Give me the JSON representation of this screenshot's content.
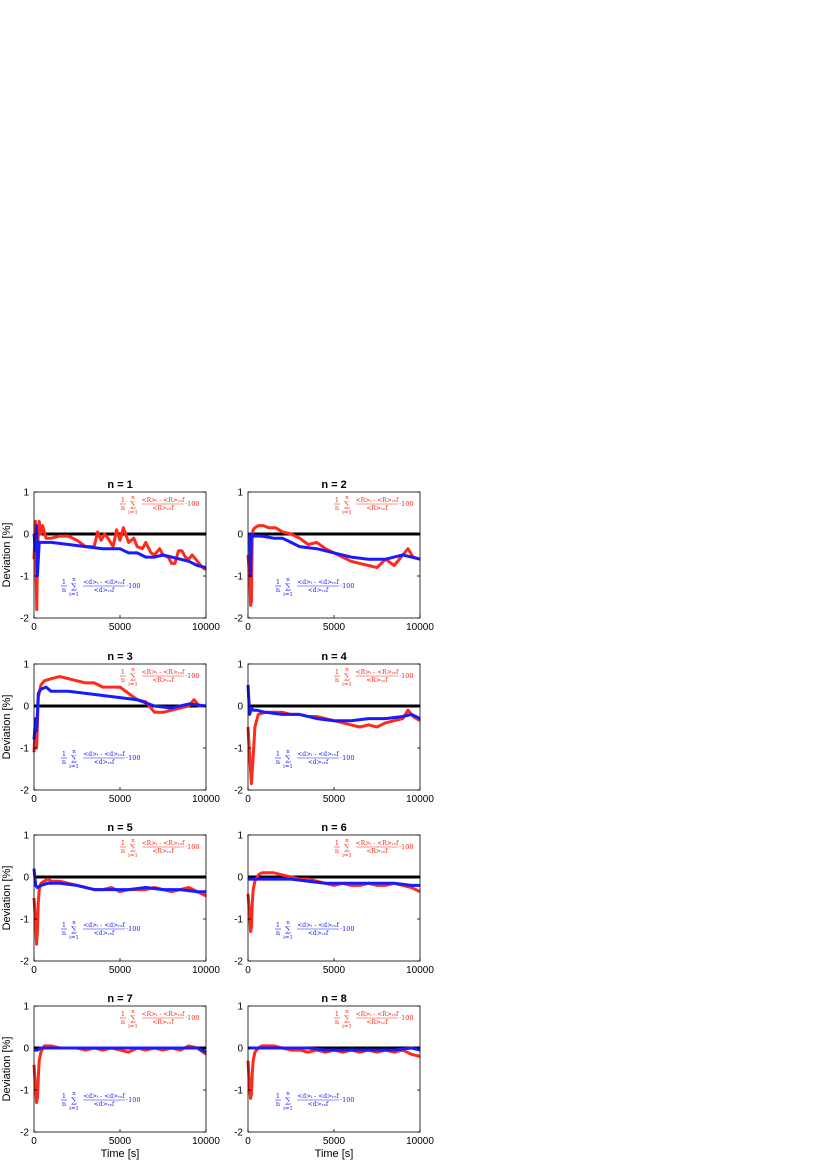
{
  "figure": {
    "xlabel": "Time [s]",
    "ylabel": "Deviation [%]",
    "colors": {
      "R": "#ff2a1a",
      "d": "#1a1aff",
      "zero": "#000000"
    },
    "formulas": {
      "R": {
        "prefix_num": "1",
        "prefix_den": "n",
        "sum_top": "n",
        "sum_bottom": "i=1",
        "num": "<R>ᵢ - <R>ᵣₑf",
        "den": "<R>ᵣₑf",
        "suffix": "·100"
      },
      "d": {
        "prefix_num": "1",
        "prefix_den": "n",
        "sum_top": "n",
        "sum_bottom": "i=1",
        "num": "<d>ᵢ - <d>ᵣₑf",
        "den": "<d>ᵣₑf",
        "suffix": "·100"
      }
    }
  },
  "chart_data": [
    {
      "type": "line",
      "title": "n = 1",
      "xlim": [
        0,
        10000
      ],
      "ylim": [
        -2,
        1
      ],
      "xticks": [
        "0",
        "5000",
        "10000"
      ],
      "yticks": [
        "1",
        "0",
        "-1",
        "-2"
      ],
      "series": [
        {
          "key": "R",
          "x": [
            0,
            80,
            120,
            160,
            200,
            260,
            300,
            400,
            500,
            700,
            1000,
            1500,
            2000,
            2500,
            3000,
            3500,
            3700,
            3900,
            4100,
            4300,
            4600,
            4800,
            5000,
            5200,
            5500,
            5800,
            6000,
            6300,
            6500,
            6800,
            7000,
            7300,
            7500,
            7800,
            8000,
            8200,
            8400,
            8600,
            8800,
            9000,
            9200,
            9400,
            9600,
            9800,
            10000
          ],
          "y": [
            -0.6,
            0.3,
            -1.0,
            -1.8,
            -0.5,
            0.1,
            0.3,
            0.0,
            0.2,
            -0.1,
            -0.1,
            -0.05,
            -0.05,
            -0.15,
            -0.3,
            -0.3,
            0.05,
            -0.15,
            0.0,
            -0.1,
            -0.3,
            0.1,
            -0.15,
            0.15,
            -0.2,
            -0.1,
            -0.3,
            -0.35,
            -0.2,
            -0.45,
            -0.5,
            -0.35,
            -0.5,
            -0.55,
            -0.7,
            -0.7,
            -0.4,
            -0.4,
            -0.55,
            -0.6,
            -0.5,
            -0.6,
            -0.7,
            -0.8,
            -0.85
          ]
        },
        {
          "key": "d",
          "x": [
            0,
            100,
            150,
            200,
            300,
            400,
            600,
            1000,
            2000,
            3000,
            4000,
            5000,
            5500,
            6000,
            6500,
            7000,
            7500,
            8000,
            8500,
            9000,
            9500,
            10000
          ],
          "y": [
            0.0,
            -0.4,
            0.2,
            -1.0,
            -0.2,
            -0.2,
            -0.2,
            -0.2,
            -0.25,
            -0.3,
            -0.35,
            -0.35,
            -0.45,
            -0.45,
            -0.55,
            -0.55,
            -0.5,
            -0.55,
            -0.6,
            -0.65,
            -0.75,
            -0.8
          ]
        }
      ]
    },
    {
      "type": "line",
      "title": "n = 2",
      "xlim": [
        0,
        10000
      ],
      "ylim": [
        -2,
        1
      ],
      "xticks": [
        "0",
        "5000",
        "10000"
      ],
      "yticks": [
        "1",
        "0",
        "-1",
        "-2"
      ],
      "series": [
        {
          "key": "R",
          "x": [
            0,
            100,
            150,
            200,
            250,
            300,
            400,
            600,
            900,
            1200,
            1600,
            2000,
            2500,
            3000,
            3500,
            4000,
            4500,
            5000,
            5500,
            6000,
            6500,
            7000,
            7500,
            8000,
            8500,
            9000,
            9300,
            9600,
            10000
          ],
          "y": [
            -0.5,
            -1.0,
            -1.7,
            -1.6,
            0.0,
            0.1,
            0.15,
            0.2,
            0.2,
            0.15,
            0.15,
            0.05,
            0.0,
            -0.1,
            -0.25,
            -0.2,
            -0.35,
            -0.45,
            -0.55,
            -0.65,
            -0.7,
            -0.75,
            -0.8,
            -0.6,
            -0.75,
            -0.5,
            -0.35,
            -0.55,
            -0.6
          ]
        },
        {
          "key": "d",
          "x": [
            0,
            100,
            150,
            200,
            300,
            500,
            800,
            1500,
            2000,
            2500,
            3000,
            4000,
            5000,
            6000,
            7000,
            8000,
            8500,
            9000,
            9500,
            10000
          ],
          "y": [
            0.0,
            0.0,
            -1.0,
            0.0,
            -0.05,
            -0.05,
            -0.05,
            -0.1,
            -0.1,
            -0.2,
            -0.3,
            -0.35,
            -0.45,
            -0.55,
            -0.6,
            -0.6,
            -0.55,
            -0.5,
            -0.55,
            -0.6
          ]
        }
      ]
    },
    {
      "type": "line",
      "title": "n = 3",
      "xlim": [
        0,
        10000
      ],
      "ylim": [
        -2,
        1
      ],
      "xticks": [
        "0",
        "5000",
        "10000"
      ],
      "yticks": [
        "1",
        "0",
        "-1",
        "-2"
      ],
      "series": [
        {
          "key": "R",
          "x": [
            0,
            100,
            150,
            250,
            400,
            600,
            1000,
            1500,
            2000,
            2500,
            3000,
            3500,
            4000,
            4500,
            5000,
            5500,
            6000,
            6500,
            7000,
            7500,
            8000,
            8500,
            9000,
            9300,
            9600,
            10000
          ],
          "y": [
            -1.1,
            -0.3,
            -1.0,
            0.2,
            0.5,
            0.6,
            0.65,
            0.7,
            0.65,
            0.6,
            0.55,
            0.55,
            0.45,
            0.45,
            0.45,
            0.3,
            0.15,
            0.1,
            -0.15,
            -0.15,
            -0.1,
            -0.05,
            0.0,
            0.15,
            0.0,
            0.0
          ]
        },
        {
          "key": "d",
          "x": [
            0,
            100,
            150,
            250,
            400,
            700,
            1000,
            2000,
            3000,
            4000,
            5000,
            6000,
            7000,
            8000,
            9000,
            10000
          ],
          "y": [
            -0.8,
            -0.3,
            -0.6,
            0.3,
            0.4,
            0.45,
            0.35,
            0.35,
            0.3,
            0.25,
            0.2,
            0.15,
            0.0,
            -0.05,
            0.05,
            0.0
          ]
        }
      ]
    },
    {
      "type": "line",
      "title": "n = 4",
      "xlim": [
        0,
        10000
      ],
      "ylim": [
        -2,
        1
      ],
      "xticks": [
        "0",
        "5000",
        "10000"
      ],
      "yticks": [
        "1",
        "0",
        "-1",
        "-2"
      ],
      "series": [
        {
          "key": "R",
          "x": [
            0,
            100,
            200,
            300,
            400,
            600,
            1000,
            1500,
            2000,
            2500,
            3000,
            3500,
            4000,
            4500,
            5000,
            5500,
            6000,
            6500,
            7000,
            7500,
            8000,
            8500,
            9000,
            9300,
            9600,
            10000
          ],
          "y": [
            -0.5,
            -1.2,
            -1.85,
            -1.2,
            -0.5,
            -0.2,
            -0.15,
            -0.15,
            -0.15,
            -0.2,
            -0.2,
            -0.25,
            -0.25,
            -0.3,
            -0.35,
            -0.4,
            -0.45,
            -0.5,
            -0.45,
            -0.5,
            -0.4,
            -0.35,
            -0.3,
            -0.1,
            -0.25,
            -0.35
          ]
        },
        {
          "key": "d",
          "x": [
            0,
            100,
            200,
            300,
            500,
            1000,
            2000,
            3000,
            4000,
            5000,
            6000,
            7000,
            8000,
            9000,
            9500,
            10000
          ],
          "y": [
            0.5,
            -0.2,
            -0.05,
            -0.1,
            -0.1,
            -0.15,
            -0.2,
            -0.2,
            -0.3,
            -0.35,
            -0.35,
            -0.3,
            -0.3,
            -0.25,
            -0.2,
            -0.3
          ]
        }
      ]
    },
    {
      "type": "line",
      "title": "n = 5",
      "xlim": [
        0,
        10000
      ],
      "ylim": [
        -2,
        1
      ],
      "xticks": [
        "0",
        "5000",
        "10000"
      ],
      "yticks": [
        "1",
        "0",
        "-1",
        "-2"
      ],
      "series": [
        {
          "key": "R",
          "x": [
            0,
            100,
            150,
            200,
            250,
            300,
            400,
            600,
            800,
            1000,
            1500,
            2000,
            2500,
            3000,
            3500,
            4000,
            4500,
            5000,
            5500,
            6000,
            6500,
            7000,
            7500,
            8000,
            8500,
            9000,
            9500,
            10000
          ],
          "y": [
            -0.5,
            -1.1,
            -1.6,
            -1.3,
            -0.6,
            -0.3,
            -0.15,
            -0.1,
            -0.05,
            -0.1,
            -0.1,
            -0.15,
            -0.2,
            -0.25,
            -0.3,
            -0.3,
            -0.25,
            -0.35,
            -0.3,
            -0.3,
            -0.3,
            -0.25,
            -0.3,
            -0.35,
            -0.3,
            -0.25,
            -0.35,
            -0.45
          ]
        },
        {
          "key": "d",
          "x": [
            0,
            100,
            200,
            400,
            800,
            1500,
            2500,
            3500,
            4500,
            5500,
            6500,
            7500,
            8500,
            9500,
            10000
          ],
          "y": [
            0.2,
            -0.2,
            -0.25,
            -0.2,
            -0.15,
            -0.15,
            -0.2,
            -0.3,
            -0.3,
            -0.3,
            -0.25,
            -0.3,
            -0.3,
            -0.35,
            -0.35
          ]
        }
      ]
    },
    {
      "type": "line",
      "title": "n = 6",
      "xlim": [
        0,
        10000
      ],
      "ylim": [
        -2,
        1
      ],
      "xticks": [
        "0",
        "5000",
        "10000"
      ],
      "yticks": [
        "1",
        "0",
        "-1",
        "-2"
      ],
      "series": [
        {
          "key": "R",
          "x": [
            0,
            100,
            150,
            200,
            250,
            300,
            400,
            600,
            800,
            1000,
            1500,
            2000,
            2500,
            3000,
            3500,
            4000,
            4500,
            5000,
            5500,
            6000,
            6500,
            7000,
            7500,
            8000,
            8500,
            9000,
            9500,
            10000
          ],
          "y": [
            -0.4,
            -0.9,
            -1.3,
            -1.2,
            -0.6,
            -0.3,
            -0.1,
            0.05,
            0.1,
            0.1,
            0.1,
            0.05,
            0.0,
            -0.05,
            -0.05,
            -0.1,
            -0.15,
            -0.2,
            -0.15,
            -0.2,
            -0.2,
            -0.15,
            -0.2,
            -0.2,
            -0.15,
            -0.2,
            -0.25,
            -0.35
          ]
        },
        {
          "key": "d",
          "x": [
            0,
            200,
            400,
            800,
            1500,
            2500,
            3500,
            4500,
            5500,
            6500,
            7500,
            8500,
            9500,
            10000
          ],
          "y": [
            -0.05,
            -0.05,
            -0.05,
            -0.05,
            -0.05,
            -0.05,
            -0.1,
            -0.15,
            -0.15,
            -0.15,
            -0.15,
            -0.15,
            -0.2,
            -0.2
          ]
        }
      ]
    },
    {
      "type": "line",
      "title": "n = 7",
      "xlim": [
        0,
        10000
      ],
      "ylim": [
        -2,
        1
      ],
      "xticks": [
        "0",
        "5000",
        "10000"
      ],
      "yticks": [
        "1",
        "0",
        "-1",
        "-2"
      ],
      "series": [
        {
          "key": "R",
          "x": [
            0,
            100,
            150,
            200,
            250,
            300,
            400,
            600,
            800,
            1000,
            1500,
            2000,
            2500,
            3000,
            3500,
            4000,
            4500,
            5000,
            5500,
            6000,
            6500,
            7000,
            7500,
            8000,
            8500,
            9000,
            9500,
            10000
          ],
          "y": [
            -0.4,
            -1.0,
            -1.3,
            -1.2,
            -0.7,
            -0.3,
            -0.1,
            0.05,
            0.05,
            0.05,
            0.0,
            0.0,
            0.0,
            -0.05,
            0.0,
            -0.05,
            0.0,
            -0.05,
            -0.1,
            0.0,
            -0.05,
            0.0,
            -0.05,
            0.0,
            -0.05,
            0.05,
            0.0,
            -0.15
          ]
        },
        {
          "key": "d",
          "x": [
            0,
            200,
            400,
            800,
            1500,
            2500,
            3500,
            4500,
            5500,
            6500,
            7500,
            8500,
            9500,
            10000
          ],
          "y": [
            -0.05,
            -0.05,
            0.0,
            0.0,
            0.0,
            0.0,
            0.0,
            0.0,
            0.0,
            0.0,
            0.0,
            0.0,
            0.0,
            -0.1
          ]
        }
      ]
    },
    {
      "type": "line",
      "title": "n = 8",
      "xlim": [
        0,
        10000
      ],
      "ylim": [
        -2,
        1
      ],
      "xticks": [
        "0",
        "5000",
        "10000"
      ],
      "yticks": [
        "1",
        "0",
        "-1",
        "-2"
      ],
      "series": [
        {
          "key": "R",
          "x": [
            0,
            100,
            150,
            200,
            250,
            300,
            400,
            600,
            800,
            1000,
            1500,
            2000,
            2500,
            3000,
            3500,
            4000,
            4500,
            5000,
            5500,
            6000,
            6500,
            7000,
            7500,
            8000,
            8500,
            9000,
            9500,
            10000
          ],
          "y": [
            -0.3,
            -1.0,
            -1.2,
            -1.1,
            -0.6,
            -0.3,
            -0.1,
            0.0,
            0.05,
            0.05,
            0.05,
            0.0,
            -0.05,
            -0.05,
            -0.1,
            -0.05,
            -0.1,
            -0.05,
            -0.1,
            -0.05,
            -0.1,
            -0.05,
            -0.1,
            -0.05,
            -0.1,
            -0.05,
            -0.15,
            -0.2
          ]
        },
        {
          "key": "d",
          "x": [
            0,
            200,
            400,
            800,
            1500,
            2500,
            3500,
            4500,
            5500,
            6500,
            7500,
            8500,
            9500,
            10000
          ],
          "y": [
            0.0,
            0.0,
            0.0,
            0.0,
            0.0,
            0.0,
            0.0,
            -0.05,
            -0.05,
            -0.05,
            -0.05,
            -0.05,
            0.0,
            -0.05
          ]
        }
      ]
    }
  ]
}
